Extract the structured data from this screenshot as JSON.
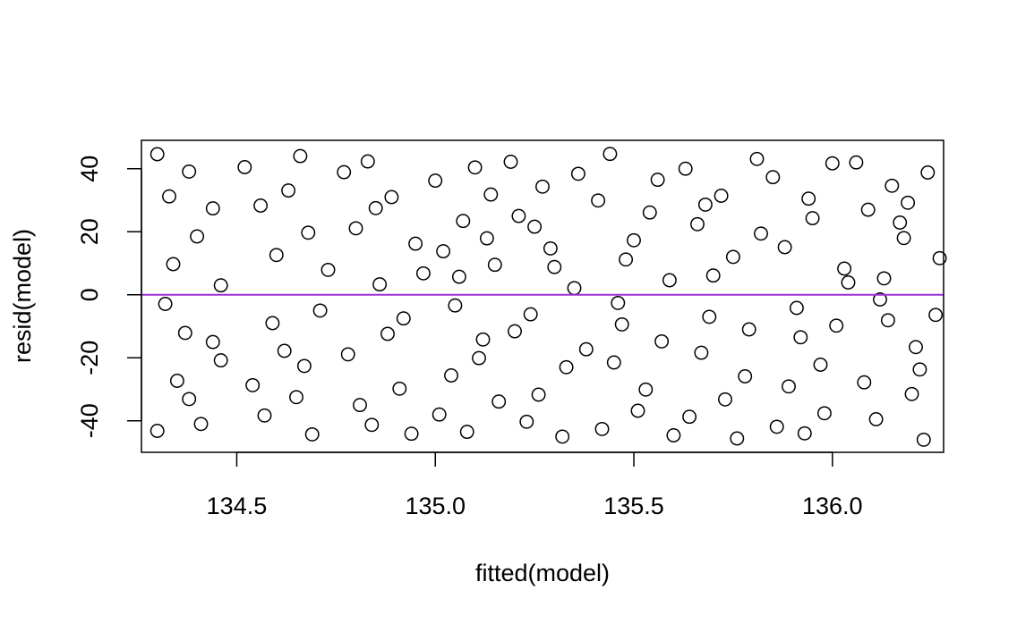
{
  "chart_data": {
    "type": "scatter",
    "title": "",
    "xlabel": "fitted(model)",
    "ylabel": "resid(model)",
    "xlim": [
      134.26,
      136.28
    ],
    "ylim": [
      -50,
      49
    ],
    "x_ticks": [
      134.5,
      135.0,
      135.5,
      136.0
    ],
    "x_tick_labels": [
      "134.5",
      "135.0",
      "135.5",
      "136.0"
    ],
    "y_ticks": [
      -40,
      -20,
      0,
      20,
      40
    ],
    "y_tick_labels": [
      "-40",
      "-20",
      "0",
      "20",
      "40"
    ],
    "grid": false,
    "reference_line": {
      "y": 0,
      "color": "#9b30d9"
    },
    "point_style": {
      "shape": "open-circle",
      "color": "#000000"
    },
    "series": [
      {
        "points": [
          [
            134.3,
            44.6
          ],
          [
            134.33,
            31.2
          ],
          [
            134.38,
            39.1
          ],
          [
            134.4,
            18.5
          ],
          [
            134.44,
            27.4
          ],
          [
            134.46,
            3.0
          ],
          [
            134.32,
            -2.9
          ],
          [
            134.35,
            -27.3
          ],
          [
            134.38,
            -33.1
          ],
          [
            134.41,
            -41.0
          ],
          [
            134.44,
            -15.0
          ],
          [
            134.46,
            -20.8
          ],
          [
            134.3,
            -43.2
          ],
          [
            134.34,
            9.7
          ],
          [
            134.37,
            -12.1
          ],
          [
            134.52,
            40.5
          ],
          [
            134.56,
            28.3
          ],
          [
            134.6,
            12.6
          ],
          [
            134.63,
            33.1
          ],
          [
            134.66,
            44.0
          ],
          [
            134.68,
            19.7
          ],
          [
            134.71,
            -5.0
          ],
          [
            134.54,
            -28.7
          ],
          [
            134.57,
            -38.3
          ],
          [
            134.62,
            -17.8
          ],
          [
            134.65,
            -32.5
          ],
          [
            134.69,
            -44.3
          ],
          [
            134.73,
            7.9
          ],
          [
            134.59,
            -9.0
          ],
          [
            134.67,
            -22.6
          ],
          [
            134.77,
            38.9
          ],
          [
            134.8,
            21.1
          ],
          [
            134.83,
            42.3
          ],
          [
            134.86,
            3.3
          ],
          [
            134.89,
            31.0
          ],
          [
            134.92,
            -7.5
          ],
          [
            134.95,
            16.2
          ],
          [
            134.78,
            -18.9
          ],
          [
            134.81,
            -35.0
          ],
          [
            134.84,
            -41.3
          ],
          [
            134.88,
            -12.4
          ],
          [
            134.91,
            -29.8
          ],
          [
            134.94,
            -44.1
          ],
          [
            134.97,
            6.8
          ],
          [
            134.85,
            27.5
          ],
          [
            135.0,
            36.2
          ],
          [
            135.02,
            13.8
          ],
          [
            135.05,
            -3.4
          ],
          [
            135.07,
            23.4
          ],
          [
            135.1,
            40.4
          ],
          [
            135.12,
            -14.2
          ],
          [
            135.15,
            9.5
          ],
          [
            135.01,
            -38.0
          ],
          [
            135.04,
            -25.6
          ],
          [
            135.08,
            -43.5
          ],
          [
            135.11,
            -20.1
          ],
          [
            135.14,
            31.8
          ],
          [
            135.16,
            -33.9
          ],
          [
            135.06,
            5.7
          ],
          [
            135.13,
            17.9
          ],
          [
            135.19,
            42.2
          ],
          [
            135.21,
            25.0
          ],
          [
            135.24,
            -6.2
          ],
          [
            135.27,
            34.3
          ],
          [
            135.3,
            8.8
          ],
          [
            135.33,
            -23.0
          ],
          [
            135.36,
            38.4
          ],
          [
            135.2,
            -11.6
          ],
          [
            135.23,
            -40.3
          ],
          [
            135.26,
            -31.7
          ],
          [
            135.29,
            14.7
          ],
          [
            135.32,
            -45.0
          ],
          [
            135.35,
            2.1
          ],
          [
            135.38,
            -17.3
          ],
          [
            135.25,
            21.6
          ],
          [
            135.41,
            29.9
          ],
          [
            135.44,
            44.7
          ],
          [
            135.47,
            -9.4
          ],
          [
            135.5,
            17.3
          ],
          [
            135.53,
            -30.1
          ],
          [
            135.56,
            36.5
          ],
          [
            135.59,
            4.6
          ],
          [
            135.42,
            -42.6
          ],
          [
            135.45,
            -21.5
          ],
          [
            135.48,
            11.2
          ],
          [
            135.51,
            -36.8
          ],
          [
            135.54,
            26.1
          ],
          [
            135.57,
            -14.8
          ],
          [
            135.6,
            -44.6
          ],
          [
            135.46,
            -2.6
          ],
          [
            135.63,
            40.0
          ],
          [
            135.66,
            22.4
          ],
          [
            135.69,
            -7.0
          ],
          [
            135.72,
            31.4
          ],
          [
            135.75,
            12.0
          ],
          [
            135.78,
            -25.9
          ],
          [
            135.81,
            43.1
          ],
          [
            135.64,
            -38.7
          ],
          [
            135.67,
            -18.4
          ],
          [
            135.7,
            6.1
          ],
          [
            135.73,
            -33.2
          ],
          [
            135.76,
            -45.6
          ],
          [
            135.79,
            -11.0
          ],
          [
            135.82,
            19.4
          ],
          [
            135.68,
            28.6
          ],
          [
            135.85,
            37.3
          ],
          [
            135.88,
            15.1
          ],
          [
            135.91,
            -4.2
          ],
          [
            135.94,
            30.5
          ],
          [
            135.97,
            -22.2
          ],
          [
            136.0,
            41.7
          ],
          [
            136.03,
            8.3
          ],
          [
            135.86,
            -41.9
          ],
          [
            135.89,
            -29.1
          ],
          [
            135.92,
            -13.5
          ],
          [
            135.95,
            24.3
          ],
          [
            135.98,
            -37.6
          ],
          [
            136.01,
            -9.8
          ],
          [
            136.04,
            3.9
          ],
          [
            135.93,
            -44.0
          ],
          [
            136.06,
            42.0
          ],
          [
            136.09,
            27.0
          ],
          [
            136.12,
            -1.5
          ],
          [
            136.15,
            34.6
          ],
          [
            136.18,
            18.0
          ],
          [
            136.21,
            -16.6
          ],
          [
            136.24,
            38.8
          ],
          [
            136.27,
            11.6
          ],
          [
            136.08,
            -27.8
          ],
          [
            136.11,
            -39.5
          ],
          [
            136.14,
            -8.1
          ],
          [
            136.17,
            22.9
          ],
          [
            136.2,
            -31.5
          ],
          [
            136.23,
            -46.0
          ],
          [
            136.26,
            -6.4
          ],
          [
            136.13,
            5.2
          ],
          [
            136.22,
            -23.7
          ],
          [
            136.19,
            29.2
          ]
        ]
      }
    ]
  }
}
